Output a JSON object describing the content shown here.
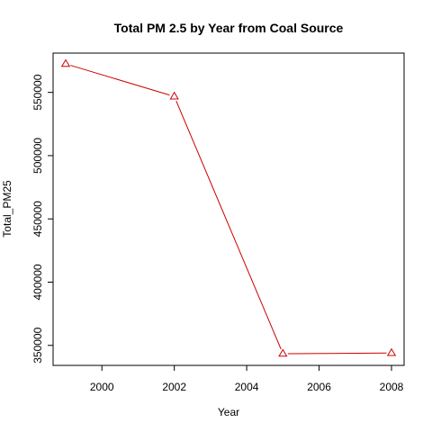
{
  "chart_data": {
    "type": "line",
    "title": "Total PM 2.5 by Year from Coal Source",
    "xlabel": "Year",
    "ylabel": "Total_PM25",
    "x": [
      1999,
      2002,
      2005,
      2008
    ],
    "series": [
      {
        "values": [
          572526,
          546789,
          343432,
          343979
        ]
      }
    ],
    "xlim": [
      1999,
      2008
    ],
    "ylim": [
      343432,
      572526
    ],
    "xticks": [
      2000,
      2002,
      2004,
      2006,
      2008
    ],
    "yticks": [
      350000,
      400000,
      450000,
      500000,
      550000
    ],
    "xtick_labels": [
      "2000",
      "2002",
      "2004",
      "2006",
      "2008"
    ],
    "ytick_labels": [
      "350000",
      "400000",
      "450000",
      "500000",
      "550000"
    ],
    "line_color": "#cc0000",
    "marker": "open-triangle",
    "grid": false,
    "legend": "none"
  }
}
